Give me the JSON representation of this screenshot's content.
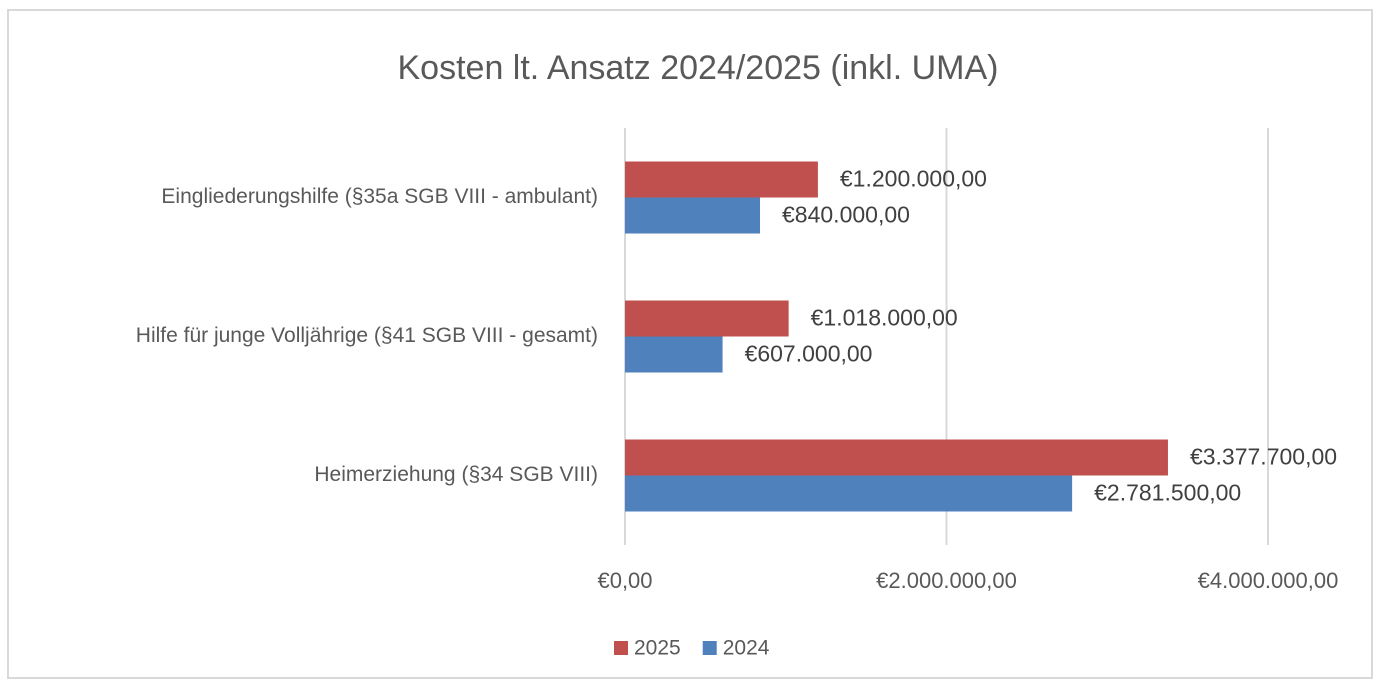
{
  "chart_data": {
    "type": "bar",
    "orientation": "horizontal",
    "title": "Kosten lt. Ansatz 2024/2025 (inkl. UMA)",
    "categories": [
      "Eingliederungshilfe (§35a SGB VIII - ambulant)",
      "Hilfe für junge Volljährige  (§41 SGB VIII - gesamt)",
      "Heimerziehung (§34 SGB VIII)"
    ],
    "series": [
      {
        "name": "2025",
        "color": "#c0504d",
        "values": [
          1200000,
          1018000,
          3377700
        ],
        "value_labels": [
          "€1.200.000,00",
          "€1.018.000,00",
          "€3.377.700,00"
        ]
      },
      {
        "name": "2024",
        "color": "#4f81bd",
        "values": [
          840000,
          607000,
          2781500
        ],
        "value_labels": [
          "€840.000,00",
          "€607.000,00",
          "€2.781.500,00"
        ]
      }
    ],
    "xlim": [
      0,
      4000000
    ],
    "xticks": [
      {
        "value": 0,
        "label": "€0,00"
      },
      {
        "value": 2000000,
        "label": "€2.000.000,00"
      },
      {
        "value": 4000000,
        "label": "€4.000.000,00"
      }
    ],
    "grid": true,
    "legend": "bottom"
  }
}
